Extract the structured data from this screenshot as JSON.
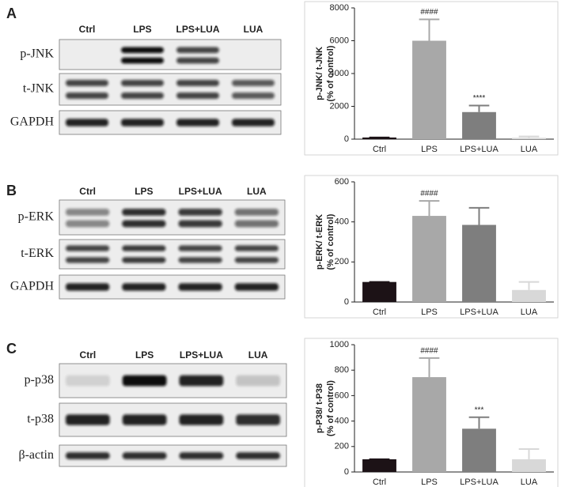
{
  "blots": [
    {
      "letter": "A",
      "lanes": [
        "Ctrl",
        "LPS",
        "LPS+LUA",
        "LUA"
      ],
      "rows": [
        "p-JNK",
        "t-JNK",
        "GAPDH"
      ]
    },
    {
      "letter": "B",
      "lanes": [
        "Ctrl",
        "LPS",
        "LPS+LUA",
        "LUA"
      ],
      "rows": [
        "p-ERK",
        "t-ERK",
        "GAPDH"
      ]
    },
    {
      "letter": "C",
      "lanes": [
        "Ctrl",
        "LPS",
        "LPS+LUA",
        "LUA"
      ],
      "rows": [
        "p-p38",
        "t-p38",
        "β-actin"
      ]
    }
  ],
  "chart_data": [
    {
      "type": "bar",
      "ylabel": [
        "p-JNK/ t-JNK",
        "(% of control)"
      ],
      "categories": [
        "Ctrl",
        "LPS",
        "LPS+LUA",
        "LUA"
      ],
      "values": [
        100,
        6000,
        1650,
        80
      ],
      "errors": [
        0,
        1300,
        400,
        80
      ],
      "value_annotations": [
        null,
        "####",
        "****",
        null
      ],
      "colors": [
        "#1c1216",
        "#a8a8a8",
        "#7e7e7e",
        "#d8d8d8"
      ],
      "ylim": [
        0,
        8000
      ],
      "yticks": [
        0,
        2000,
        4000,
        6000,
        8000
      ]
    },
    {
      "type": "bar",
      "ylabel": [
        "p-ERK/ t-ERK",
        "(% of control)"
      ],
      "categories": [
        "Ctrl",
        "LPS",
        "LPS+LUA",
        "LUA"
      ],
      "values": [
        100,
        430,
        385,
        60
      ],
      "errors": [
        0,
        75,
        85,
        40
      ],
      "value_annotations": [
        null,
        "####",
        null,
        null
      ],
      "colors": [
        "#1c1216",
        "#a8a8a8",
        "#7e7e7e",
        "#d8d8d8"
      ],
      "ylim": [
        0,
        600
      ],
      "yticks": [
        0,
        200,
        400,
        600
      ]
    },
    {
      "type": "bar",
      "ylabel": [
        "p-P38/ t-P38",
        "(% of control)"
      ],
      "categories": [
        "Ctrl",
        "LPS",
        "LPS+LUA",
        "LUA"
      ],
      "values": [
        100,
        745,
        340,
        100
      ],
      "errors": [
        0,
        150,
        90,
        80
      ],
      "value_annotations": [
        null,
        "####",
        "***",
        null
      ],
      "colors": [
        "#1c1216",
        "#a8a8a8",
        "#7e7e7e",
        "#d8d8d8"
      ],
      "ylim": [
        0,
        1000
      ],
      "yticks": [
        0,
        200,
        400,
        600,
        800,
        1000
      ]
    }
  ]
}
